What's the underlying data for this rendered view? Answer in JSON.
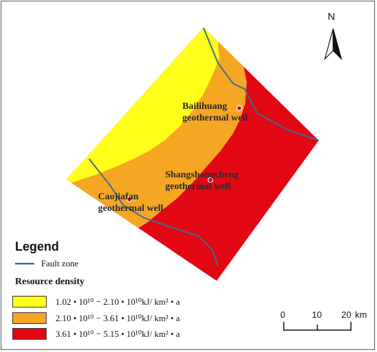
{
  "map": {
    "north_label": "N",
    "colors": {
      "low": "#ffff1a",
      "mid": "#f5a623",
      "high": "#e30613",
      "fault": "#3b6e8f"
    },
    "wells": [
      {
        "name_line1": "Bailihuang",
        "name_line2": "geothermal well"
      },
      {
        "name_line1": "Shangshangcheng",
        "name_line2": "geothermal well"
      },
      {
        "name_line1": "Caojiafan",
        "name_line2": "geothermal well"
      }
    ]
  },
  "legend": {
    "title": "Legend",
    "fault_label": "Fault zone",
    "resource_title": "Resource density",
    "classes": [
      {
        "label": "1.02 • 10¹⁰ − 2.10 • 10¹⁰kJ/ km² • a",
        "color": "#ffff1a"
      },
      {
        "label": "2.10 • 10¹⁰ − 3.61 • 10¹⁰kJ/ km² • a",
        "color": "#f5a623"
      },
      {
        "label": "3.61 • 10¹⁰ − 5.15 • 10¹⁰kJ/ km² • a",
        "color": "#e30613"
      }
    ]
  },
  "scale_bar": {
    "ticks": [
      "0",
      "10",
      "20"
    ],
    "unit": "km"
  }
}
